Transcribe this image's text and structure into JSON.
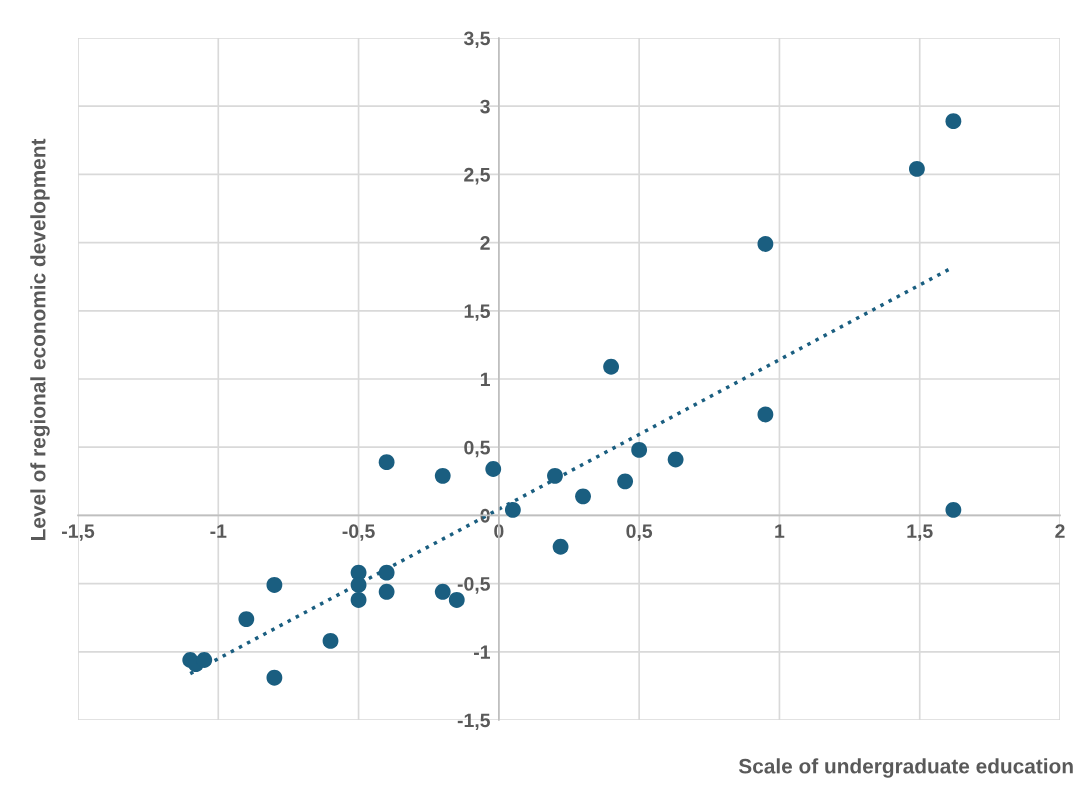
{
  "chart_data": {
    "type": "scatter",
    "xlabel": "Scale of undergraduate education",
    "ylabel": "Level of regional economic development",
    "series": [
      {
        "color": "#1a5e80",
        "marker": "circle",
        "x": [
          -1.1,
          -1.08,
          -1.05,
          -0.8,
          -0.9,
          -0.8,
          -0.6,
          -0.5,
          -0.5,
          -0.5,
          -0.4,
          -0.4,
          -0.4,
          -0.2,
          -0.2,
          -0.15,
          -0.02,
          0.05,
          0.2,
          0.22,
          0.3,
          0.4,
          0.45,
          0.5,
          0.63,
          0.95,
          0.95,
          1.49,
          1.62,
          1.62
        ],
        "values": [
          -1.06,
          -1.09,
          -1.06,
          -0.51,
          -0.76,
          -1.19,
          -0.92,
          -0.42,
          -0.51,
          -0.62,
          -0.42,
          -0.56,
          0.39,
          0.29,
          -0.56,
          -0.62,
          0.34,
          0.04,
          0.29,
          -0.23,
          0.14,
          1.09,
          0.25,
          0.48,
          0.41,
          1.99,
          0.74,
          2.54,
          2.89,
          0.04
        ]
      },
      {
        "type": "line",
        "color": "#1a5e80",
        "line_style": "dotted",
        "marker": "none",
        "x": [
          -1.1,
          1.61
        ],
        "values": [
          -1.16,
          1.81
        ]
      }
    ],
    "xlim": [
      -1.5,
      2
    ],
    "ylim": [
      -1.5,
      3.5
    ],
    "xticks": [
      {
        "value": -1.5,
        "label": "-1,5"
      },
      -1,
      {
        "value": -0.5,
        "label": "-0,5"
      },
      0,
      {
        "value": 0.5,
        "label": "0,5"
      },
      1,
      {
        "value": 1.5,
        "label": "1,5"
      },
      2
    ],
    "yticks": [
      {
        "value": -1.5,
        "label": "-1,5"
      },
      -1,
      {
        "value": -0.5,
        "label": "-0,5"
      },
      0,
      {
        "value": 0.5,
        "label": "0,5"
      },
      1,
      {
        "value": 1.5,
        "label": "1,5"
      },
      2,
      {
        "value": 2.5,
        "label": "2,5"
      },
      3,
      {
        "value": 3.5,
        "label": "3,5"
      }
    ],
    "grid": true,
    "legend": false
  }
}
